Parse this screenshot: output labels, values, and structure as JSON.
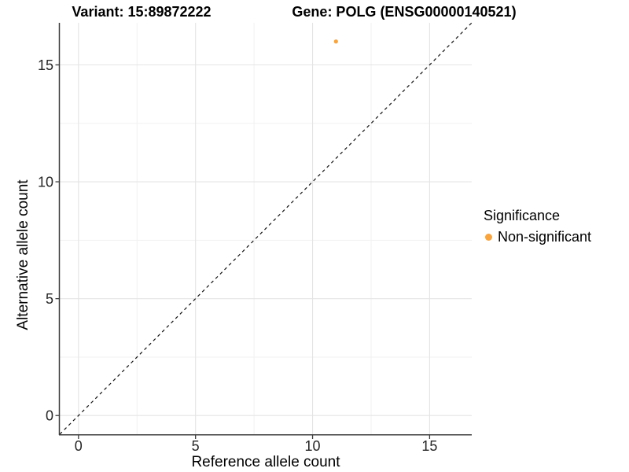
{
  "title_left": "Variant: 15:89872222",
  "title_right": "Gene: POLG (ENSG00000140521)",
  "axes": {
    "x_label": "Reference allele count",
    "y_label": "Alternative allele count"
  },
  "legend": {
    "title": "Significance",
    "items": [
      {
        "label": "Non-significant",
        "color": "#F9A43C"
      }
    ]
  },
  "colors": {
    "point": "#F9A43C",
    "grid_major": "#E4E4E4",
    "grid_minor": "#F1F1F1",
    "axis_line": "#3D3D3D",
    "reference_line": "#111111",
    "tick_text": "#262626"
  },
  "chart_data": {
    "type": "scatter",
    "title": "Variant: 15:89872222 | Gene: POLG (ENSG00000140521)",
    "xlabel": "Reference allele count",
    "ylabel": "Alternative allele count",
    "xlim": [
      -0.8,
      16.8
    ],
    "ylim": [
      -0.8,
      16.8
    ],
    "xticks": [
      0,
      5,
      10,
      15
    ],
    "yticks": [
      0,
      5,
      10,
      15
    ],
    "minor_ticks": [
      2.5,
      7.5,
      12.5
    ],
    "grid": true,
    "legend_position": "right",
    "series": [
      {
        "name": "Non-significant",
        "color": "#F9A43C",
        "points": [
          {
            "x": 11,
            "y": 16
          }
        ]
      }
    ],
    "reference_line": {
      "description": "identity line y = x",
      "style": "dashed",
      "from": [
        -0.8,
        -0.8
      ],
      "to": [
        16.8,
        16.8
      ]
    }
  }
}
